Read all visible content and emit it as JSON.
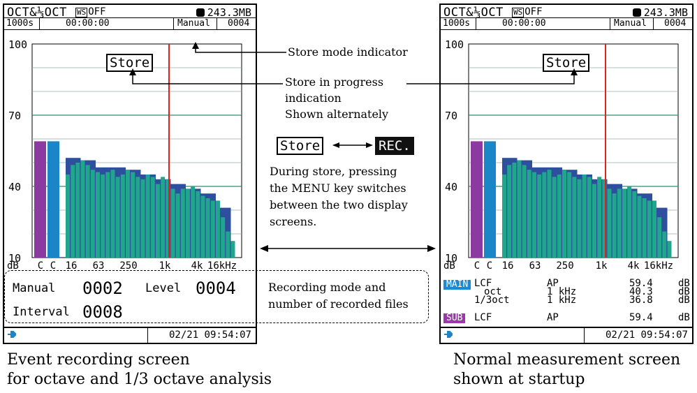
{
  "left_screen": {
    "title": "OCT&⅓OCT",
    "ws_label": "WS",
    "ws_value": "OFF",
    "memory": "243.3MB",
    "time_setting": "1000s",
    "elapsed": "00:00:00",
    "store_mode": "Manual",
    "counter": "0004",
    "store_label": "Store",
    "info": {
      "manual_label": "Manual",
      "manual_value": "0002",
      "level_label": "Level",
      "level_value": "0004",
      "interval_label": "Interval",
      "interval_value": "0008"
    },
    "datetime": "02/21 09:54:07"
  },
  "right_screen": {
    "title": "OCT&⅓OCT",
    "ws_label": "WS",
    "ws_value": "OFF",
    "memory": "243.3MB",
    "time_setting": "1000s",
    "elapsed": "00:00:00",
    "store_mode": "Manual",
    "counter": "0004",
    "store_label": "Store",
    "main_tag": "MAIN",
    "sub_tag": "SUB",
    "readout": [
      {
        "c1": "LCF",
        "c2": "AP",
        "c3": "59.4",
        "c4": "dB"
      },
      {
        "c1": "oct",
        "c2": "1 kHz",
        "c3": "40.3",
        "c4": "dB"
      },
      {
        "c1": "1/3oct",
        "c2": "1 kHz",
        "c3": "36.8",
        "c4": "dB"
      },
      {
        "c1": "LCF",
        "c2": "AP",
        "c3": "59.4",
        "c4": "dB"
      }
    ],
    "datetime": "02/21 09:54:07"
  },
  "chart_data": {
    "type": "bar",
    "y_ticks": [
      "100",
      "70",
      "40",
      "10"
    ],
    "ylim": [
      10,
      100
    ],
    "y_unit": "dB",
    "x_ticks": [
      "C",
      "C",
      "16",
      "63",
      "250",
      "1k",
      "4k",
      "16kHz"
    ],
    "overall": [
      {
        "name": "C",
        "value": 59,
        "color": "#8b3aa0"
      },
      {
        "name": "C",
        "value": 59,
        "color": "#1a86c8"
      }
    ],
    "octave_values": [
      52,
      51,
      48,
      48,
      47,
      45,
      43,
      41,
      39,
      37,
      31
    ],
    "third_octave_values": [
      45,
      49,
      50,
      51,
      49,
      47,
      46,
      45,
      46,
      47,
      44,
      45,
      47,
      46,
      44,
      43,
      45,
      44,
      41,
      44,
      43,
      39,
      37,
      39,
      39,
      40,
      38,
      36,
      35,
      34,
      34,
      27,
      21,
      17
    ],
    "octave_color": "#2e4f9e",
    "third_octave_color": "#1fa68c",
    "cursor_color": "#e02020",
    "grid_color": "#2f8f6f"
  },
  "annotations": {
    "store_mode_indicator": "Store mode indicator",
    "store_progress_line1": "Store in progress",
    "store_progress_line2": "indication",
    "store_progress_line3": "Shown alternately",
    "store_word": "Store",
    "rec_word": "REC.",
    "menu_line1": "During store, pressing",
    "menu_line2": "the MENU key switches",
    "menu_line3": "between the two display",
    "menu_line4": "screens.",
    "recording_line1": "Recording mode and",
    "recording_line2": "number of recorded files"
  },
  "captions": {
    "left_line1": "Event recording screen",
    "left_line2": "for octave and 1/3 octave analysis",
    "right_line1": "Normal measurement screen",
    "right_line2": "shown at startup"
  }
}
